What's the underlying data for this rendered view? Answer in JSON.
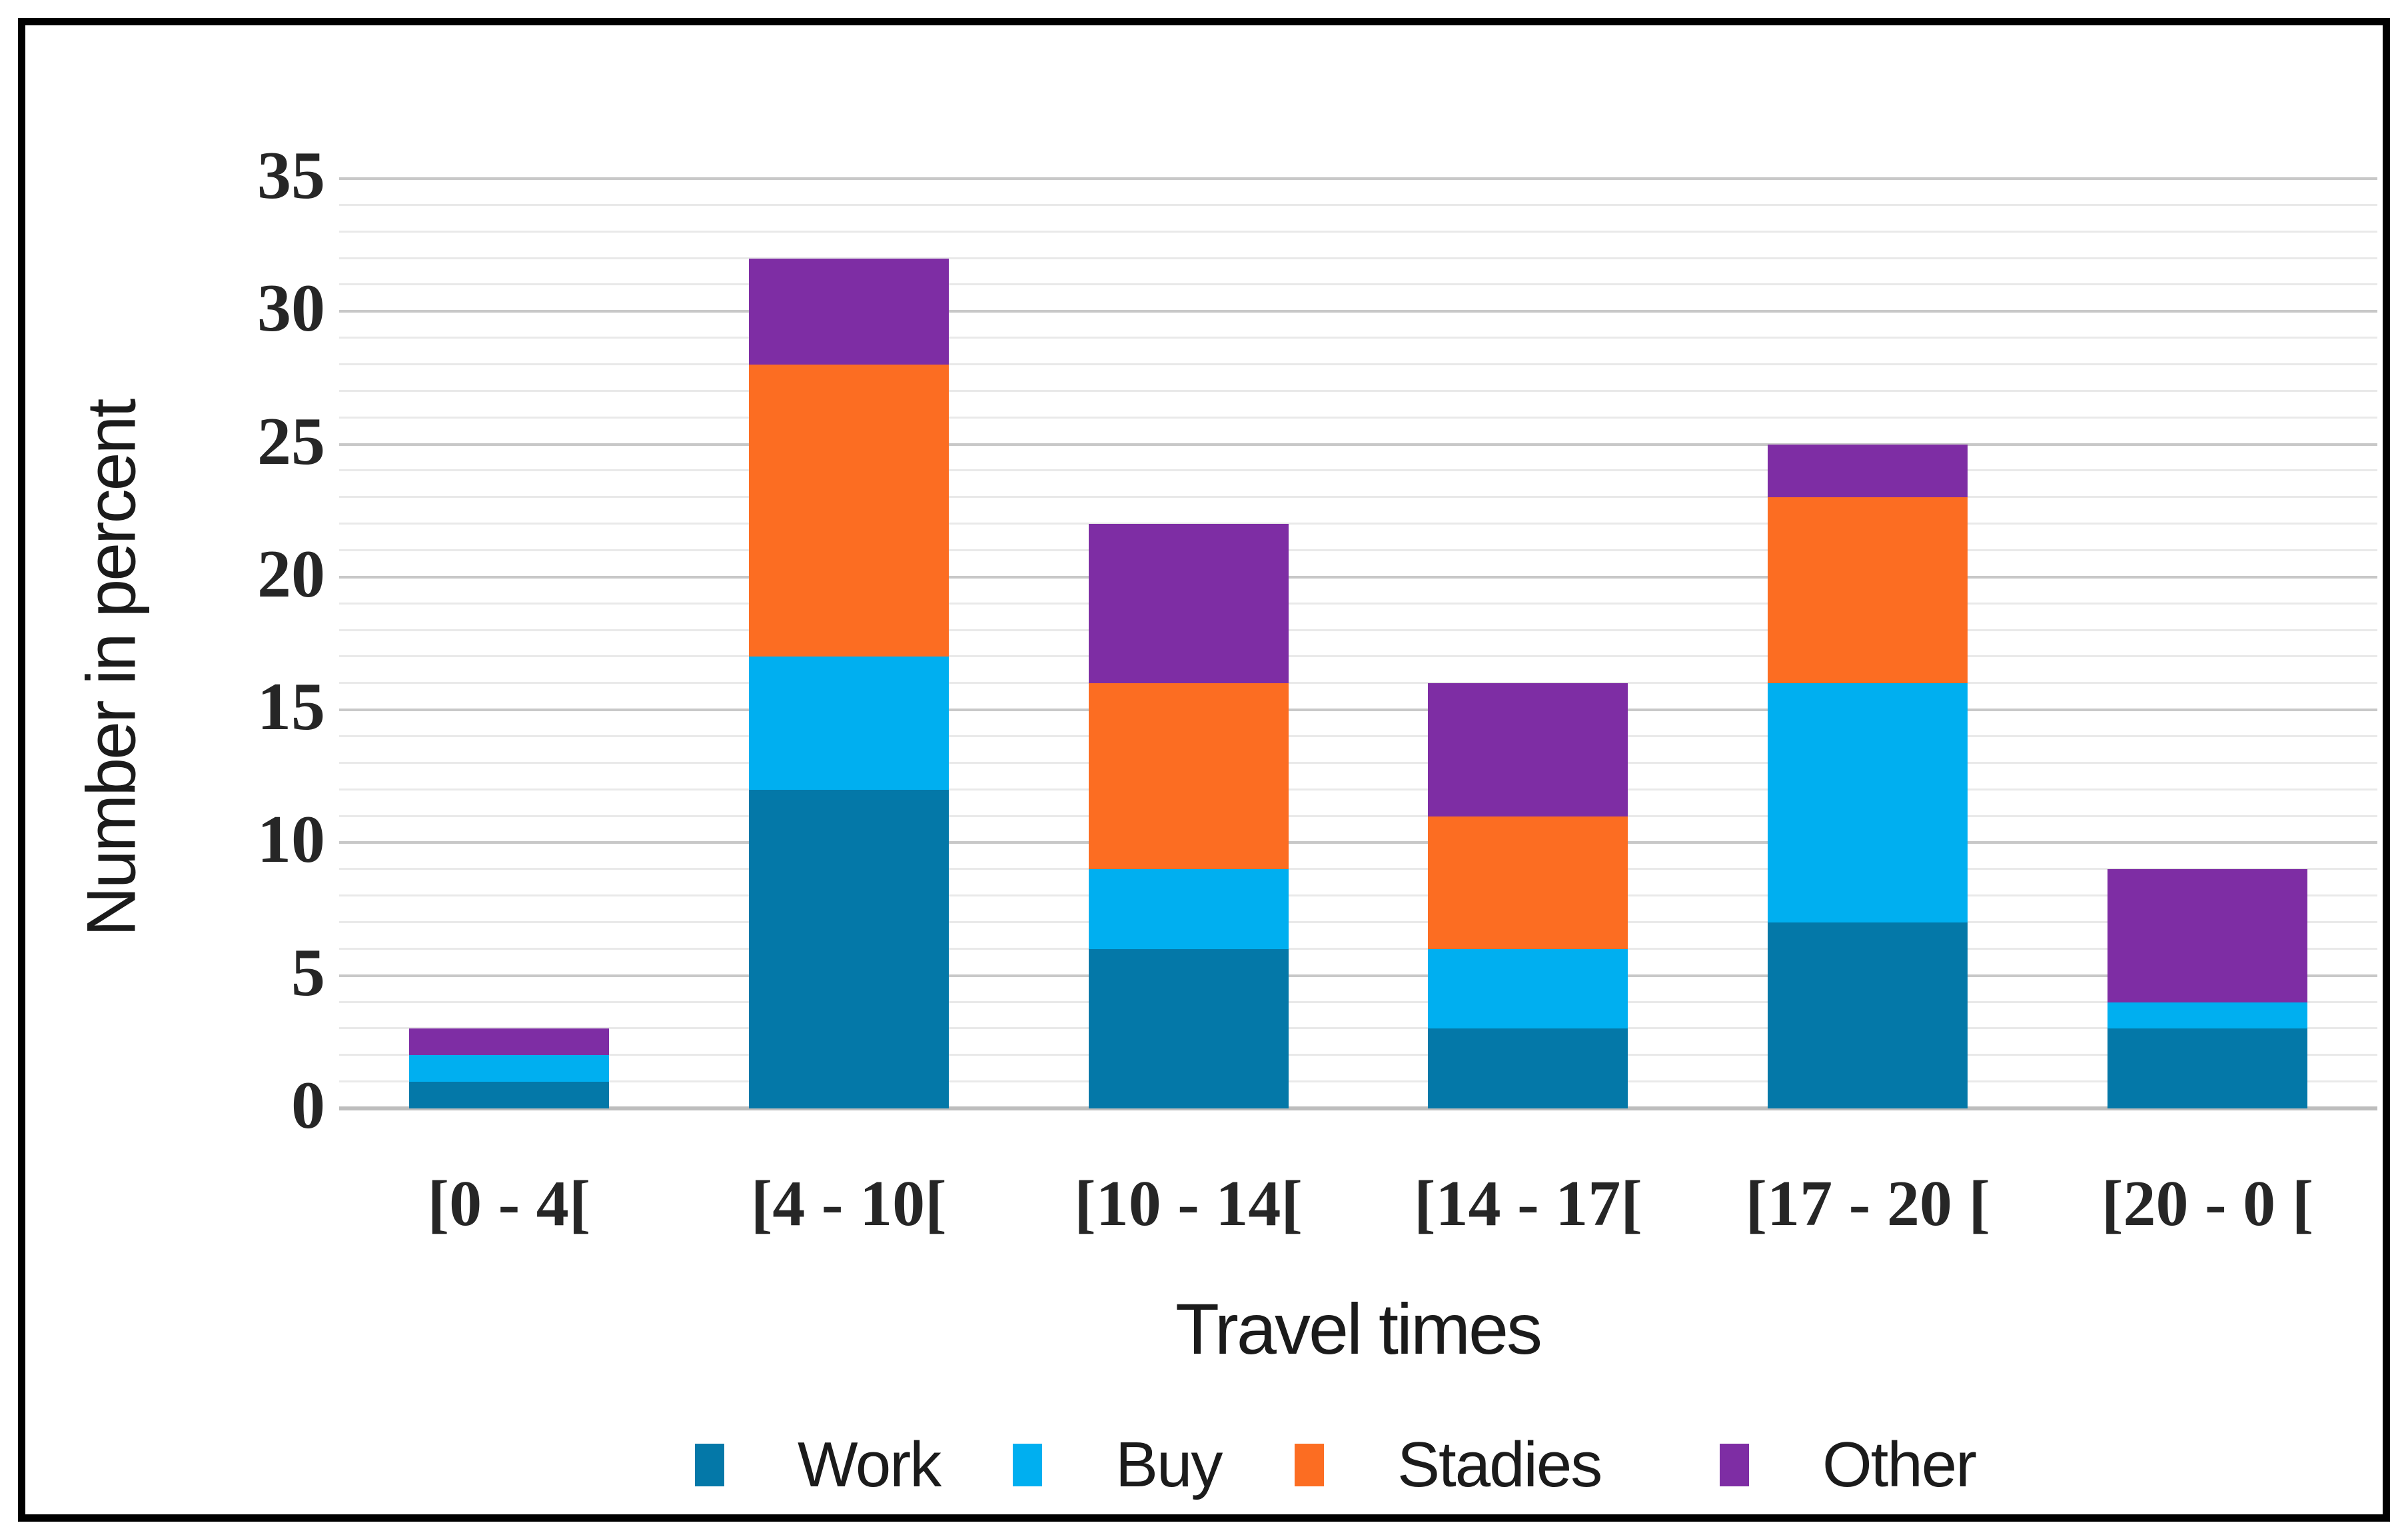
{
  "chart_data": {
    "type": "bar",
    "stacked": true,
    "title": "",
    "xlabel": "Travel times",
    "ylabel": "Number in percent",
    "categories": [
      "[0 - 4[",
      "[4 - 10[",
      "[10 - 14[",
      "[14 - 17[",
      "[17 - 20 [",
      "[20 - 0 ["
    ],
    "series": [
      {
        "name": "Work",
        "color": "#0478A8",
        "values": [
          1,
          12,
          6,
          3,
          7,
          3
        ]
      },
      {
        "name": "Buy",
        "color": "#00AFF0",
        "values": [
          1,
          5,
          3,
          3,
          9,
          1
        ]
      },
      {
        "name": "Stadies",
        "color": "#FC6D22",
        "values": [
          0,
          11,
          7,
          5,
          7,
          0
        ]
      },
      {
        "name": "Other",
        "color": "#7E2DA4",
        "values": [
          1,
          4,
          6,
          5,
          2,
          5
        ]
      }
    ],
    "ylim": [
      0,
      35
    ],
    "ytick_step": 5,
    "minor_grid_step": 1,
    "yticks": [
      0,
      5,
      10,
      15,
      20,
      25,
      30,
      35
    ],
    "grid": true,
    "legend_position": "bottom",
    "grid_colors": {
      "minor": "#E9E9E9",
      "major": "#C8C8C8",
      "zero": "#BDBDBD"
    },
    "text_color": "#1b1b1b"
  }
}
